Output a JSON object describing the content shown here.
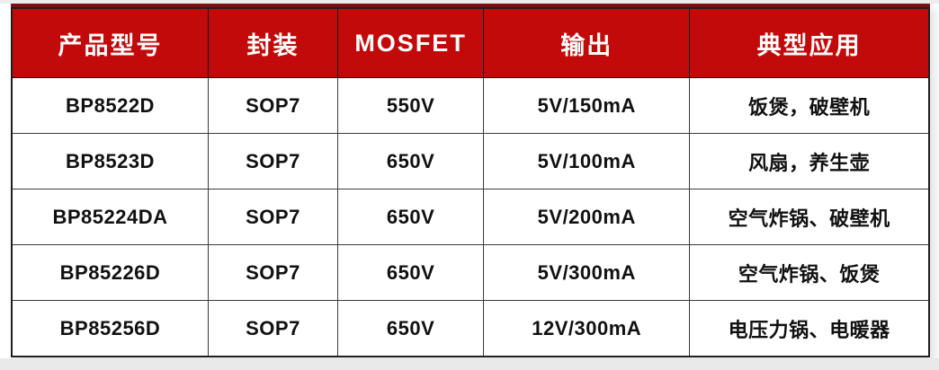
{
  "colors": {
    "header_bg": "#c30a0a",
    "accent_bar": "#7e0e10",
    "header_text": "#ffffff",
    "body_text": "#111111",
    "border": "#1f1f1f"
  },
  "table": {
    "columns": [
      {
        "key": "model",
        "label": "产品型号"
      },
      {
        "key": "package",
        "label": "封装"
      },
      {
        "key": "mosfet",
        "label": "MOSFET"
      },
      {
        "key": "output",
        "label": "输出"
      },
      {
        "key": "application",
        "label": "典型应用"
      }
    ],
    "rows": [
      {
        "model": "BP8522D",
        "package": "SOP7",
        "mosfet": "550V",
        "output": "5V/150mA",
        "application": "饭煲，破壁机"
      },
      {
        "model": "BP8523D",
        "package": "SOP7",
        "mosfet": "650V",
        "output": "5V/100mA",
        "application": "风扇，养生壶"
      },
      {
        "model": "BP85224DA",
        "package": "SOP7",
        "mosfet": "650V",
        "output": "5V/200mA",
        "application": "空气炸锅、破壁机"
      },
      {
        "model": "BP85226D",
        "package": "SOP7",
        "mosfet": "650V",
        "output": "5V/300mA",
        "application": "空气炸锅、饭煲"
      },
      {
        "model": "BP85256D",
        "package": "SOP7",
        "mosfet": "650V",
        "output": "12V/300mA",
        "application": "电压力锅、电暖器"
      }
    ]
  }
}
